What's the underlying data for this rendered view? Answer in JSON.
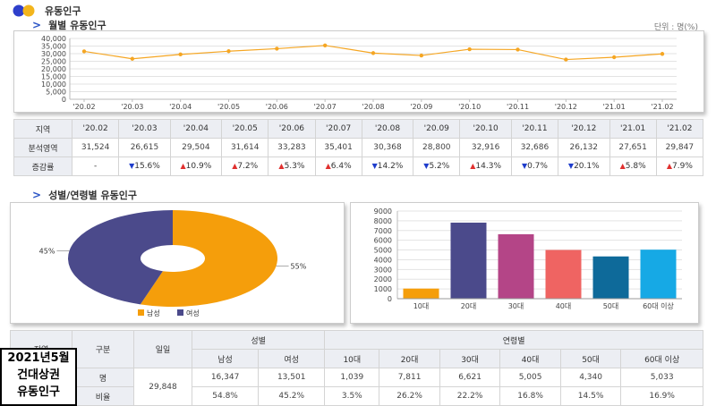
{
  "header": {
    "title": "유동인구",
    "logo_colors": [
      "#2e3fcb",
      "#f3b51c"
    ]
  },
  "monthly": {
    "section_title": "월별 유동인구",
    "unit": "단위 : 명(%)",
    "table": {
      "head_label": "지역",
      "row1_label": "분석영역",
      "row2_label": "증감률",
      "cells": [
        {
          "month": "'20.02",
          "value": "31,524",
          "change": "-",
          "dir": "none"
        },
        {
          "month": "'20.03",
          "value": "26,615",
          "change": "15.6%",
          "dir": "down"
        },
        {
          "month": "'20.04",
          "value": "29,504",
          "change": "10.9%",
          "dir": "up"
        },
        {
          "month": "'20.05",
          "value": "31,614",
          "change": "7.2%",
          "dir": "up"
        },
        {
          "month": "'20.06",
          "value": "33,283",
          "change": "5.3%",
          "dir": "up"
        },
        {
          "month": "'20.07",
          "value": "35,401",
          "change": "6.4%",
          "dir": "up"
        },
        {
          "month": "'20.08",
          "value": "30,368",
          "change": "14.2%",
          "dir": "down"
        },
        {
          "month": "'20.09",
          "value": "28,800",
          "change": "5.2%",
          "dir": "down"
        },
        {
          "month": "'20.10",
          "value": "32,916",
          "change": "14.3%",
          "dir": "up"
        },
        {
          "month": "'20.11",
          "value": "32,686",
          "change": "0.7%",
          "dir": "down"
        },
        {
          "month": "'20.12",
          "value": "26,132",
          "change": "20.1%",
          "dir": "down"
        },
        {
          "month": "'21.01",
          "value": "27,651",
          "change": "5.8%",
          "dir": "up"
        },
        {
          "month": "'21.02",
          "value": "29,847",
          "change": "7.9%",
          "dir": "up"
        }
      ]
    }
  },
  "demographic": {
    "section_title": "성별/연령별 유동인구"
  },
  "bottom_table": {
    "h_region": "지역",
    "h_type": "구분",
    "h_daily": "일일",
    "h_gender": "성별",
    "h_male": "남성",
    "h_female": "여성",
    "h_age": "연령별",
    "age_labels": [
      "10대",
      "20대",
      "30대",
      "40대",
      "50대",
      "60대 이상"
    ],
    "row1_label": "명",
    "row2_label": "비율",
    "daily_value": "29,848",
    "male_count": "16,347",
    "female_count": "13,501",
    "male_ratio": "54.8%",
    "female_ratio": "45.2%",
    "age_counts": [
      "1,039",
      "7,811",
      "6,621",
      "5,005",
      "4,340",
      "5,033"
    ],
    "age_ratios": [
      "3.5%",
      "26.2%",
      "22.2%",
      "16.8%",
      "14.5%",
      "16.9%"
    ]
  },
  "stamp": {
    "line1": "2021년5월",
    "line2": "건대상권",
    "line3": "유동인구"
  },
  "chart_data": [
    {
      "type": "line",
      "x": [
        "'20.02",
        "'20.03",
        "'20.04",
        "'20.05",
        "'20.06",
        "'20.07",
        "'20.08",
        "'20.09",
        "'20.10",
        "'20.11",
        "'20.12",
        "'21.01",
        "'21.02"
      ],
      "values": [
        31524,
        26615,
        29504,
        31614,
        33283,
        35401,
        30368,
        28800,
        32916,
        32686,
        26132,
        27651,
        29847
      ],
      "yticks": [
        "40,000",
        "35,000",
        "30,000",
        "25,000",
        "20,000",
        "15,000",
        "10,000",
        "5,000",
        "0"
      ],
      "ylim": [
        0,
        40000
      ],
      "color": "#f5a623",
      "grid": true
    },
    {
      "type": "pie",
      "donut": true,
      "series": [
        {
          "name": "남성",
          "value": 55,
          "label": "55%",
          "color": "#f59e0b"
        },
        {
          "name": "여성",
          "value": 45,
          "label": "45%",
          "color": "#4b4a8b"
        }
      ],
      "legend_position": "bottom"
    },
    {
      "type": "bar",
      "categories": [
        "10대",
        "20대",
        "30대",
        "40대",
        "50대",
        "60대 이상"
      ],
      "values": [
        1039,
        7811,
        6621,
        5005,
        4340,
        5033
      ],
      "colors": [
        "#f59e0b",
        "#4b4a8b",
        "#b44587",
        "#ef6462",
        "#0e6a9a",
        "#16a9e5"
      ],
      "yticks": [
        "9000",
        "8000",
        "7000",
        "6000",
        "5000",
        "4000",
        "3000",
        "2000",
        "1000",
        "0"
      ],
      "ylim": [
        0,
        9000
      ],
      "grid": true
    }
  ]
}
